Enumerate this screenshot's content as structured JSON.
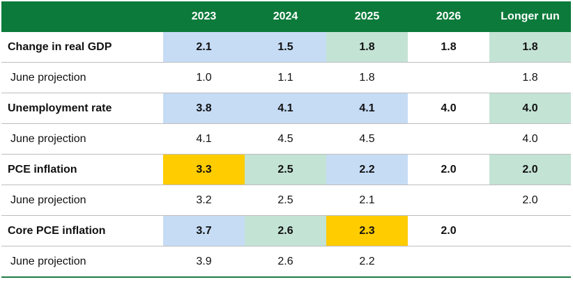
{
  "chart_data": {
    "type": "table",
    "columns": [
      "",
      "2023",
      "2024",
      "2025",
      "2026",
      "Longer run"
    ],
    "rows": [
      {
        "label": "Change in real GDP",
        "style": "main",
        "values": [
          "2.1",
          "1.5",
          "1.8",
          "1.8",
          "1.8"
        ],
        "highlight": [
          "blue",
          "blue",
          "green",
          "none",
          "green"
        ]
      },
      {
        "label": "June projection",
        "style": "sub",
        "values": [
          "1.0",
          "1.1",
          "1.8",
          "",
          "1.8"
        ],
        "highlight": [
          "none",
          "none",
          "none",
          "none",
          "none"
        ]
      },
      {
        "label": "Unemployment rate",
        "style": "main",
        "values": [
          "3.8",
          "4.1",
          "4.1",
          "4.0",
          "4.0"
        ],
        "highlight": [
          "blue",
          "blue",
          "blue",
          "none",
          "green"
        ]
      },
      {
        "label": "June projection",
        "style": "sub",
        "values": [
          "4.1",
          "4.5",
          "4.5",
          "",
          "4.0"
        ],
        "highlight": [
          "none",
          "none",
          "none",
          "none",
          "none"
        ]
      },
      {
        "label": "PCE inflation",
        "style": "main",
        "values": [
          "3.3",
          "2.5",
          "2.2",
          "2.0",
          "2.0"
        ],
        "highlight": [
          "yellow",
          "green",
          "blue",
          "none",
          "green"
        ]
      },
      {
        "label": "June projection",
        "style": "sub",
        "values": [
          "3.2",
          "2.5",
          "2.1",
          "",
          "2.0"
        ],
        "highlight": [
          "none",
          "none",
          "none",
          "none",
          "none"
        ]
      },
      {
        "label": "Core PCE inflation",
        "style": "main",
        "values": [
          "3.7",
          "2.6",
          "2.3",
          "2.0",
          ""
        ],
        "highlight": [
          "blue",
          "green",
          "yellow",
          "none",
          "none"
        ]
      },
      {
        "label": "June projection",
        "style": "sub",
        "values": [
          "3.9",
          "2.6",
          "2.2",
          "",
          ""
        ],
        "highlight": [
          "none",
          "none",
          "none",
          "none",
          "none"
        ]
      }
    ],
    "colors": {
      "header": "#0b7a3a",
      "blue": "#c6dcf5",
      "green": "#c3e3d5",
      "yellow": "#ffcc00"
    }
  }
}
